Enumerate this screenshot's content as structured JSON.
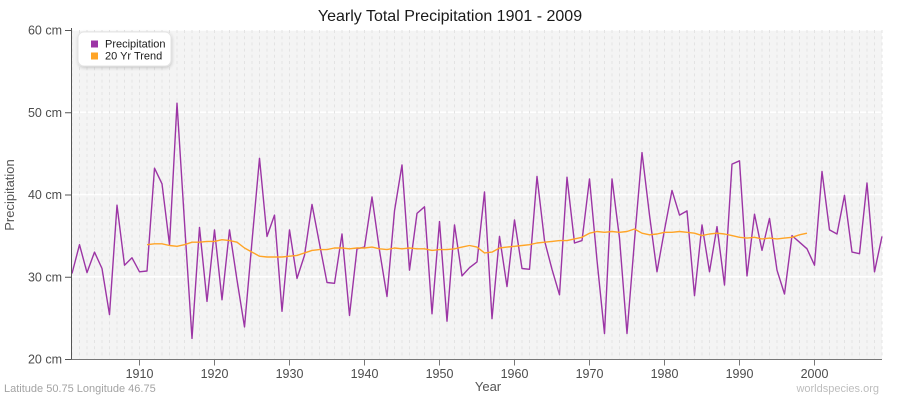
{
  "page": {
    "title": "Yearly Total Precipitation 1901 - 2009",
    "footer_left": "Latitude 50.75 Longitude 46.75",
    "footer_right": "worldspecies.org"
  },
  "chart_data": {
    "type": "line",
    "title": "Yearly Total Precipitation 1901 - 2009",
    "xlabel": "Year",
    "ylabel": "Precipitation",
    "ylim": [
      20,
      60
    ],
    "y_ticks": [
      20,
      30,
      40,
      50,
      60
    ],
    "y_tick_suffix": " cm",
    "x_ticks": [
      1910,
      1920,
      1930,
      1940,
      1950,
      1960,
      1970,
      1980,
      1990,
      2000
    ],
    "x_start": 1901,
    "x_end": 2009,
    "grid": "vertical dashed yearly, horizontal white at 10cm steps",
    "legend_position": "top-left",
    "plot_bg": "#f4f4f4",
    "series": [
      {
        "name": "Precipitation",
        "color": "#9C35A5",
        "x_start": 1901,
        "values": [
          30.4,
          33.9,
          30.5,
          33.0,
          31.0,
          25.4,
          38.7,
          31.4,
          32.3,
          30.6,
          30.7,
          43.2,
          41.3,
          33.9,
          51.1,
          36.6,
          22.5,
          36.0,
          27.0,
          35.7,
          27.2,
          35.7,
          29.6,
          23.9,
          34.3,
          44.4,
          34.9,
          37.5,
          25.8,
          35.7,
          29.8,
          32.6,
          38.8,
          34.0,
          29.3,
          29.2,
          35.2,
          25.3,
          33.4,
          33.6,
          39.7,
          33.2,
          27.6,
          38.0,
          43.6,
          30.8,
          37.7,
          38.5,
          25.5,
          36.7,
          24.6,
          36.3,
          30.1,
          31.1,
          31.8,
          40.3,
          24.9,
          34.9,
          28.8,
          36.9,
          31.0,
          30.9,
          42.2,
          34.4,
          30.9,
          27.8,
          42.1,
          34.1,
          34.4,
          41.9,
          32.0,
          23.1,
          41.9,
          34.7,
          23.1,
          34.4,
          45.1,
          37.5,
          30.6,
          35.7,
          40.5,
          37.5,
          38.0,
          27.7,
          36.3,
          30.6,
          36.1,
          29.0,
          43.7,
          44.1,
          30.1,
          37.6,
          33.2,
          37.1,
          30.8,
          27.9,
          35.0,
          34.2,
          33.4,
          31.4,
          42.8,
          35.7,
          35.2,
          39.9,
          33.0,
          32.8,
          41.4,
          30.6,
          34.9
        ]
      },
      {
        "name": "20 Yr Trend",
        "color": "#FFA426",
        "x_start": 1911,
        "values": [
          33.9,
          34.0,
          34.0,
          33.8,
          33.7,
          33.9,
          34.2,
          34.2,
          34.3,
          34.3,
          34.5,
          34.4,
          34.2,
          33.5,
          33.0,
          32.5,
          32.4,
          32.4,
          32.4,
          32.5,
          32.6,
          32.9,
          33.2,
          33.3,
          33.3,
          33.5,
          33.5,
          33.4,
          33.5,
          33.5,
          33.6,
          33.4,
          33.3,
          33.5,
          33.4,
          33.5,
          33.4,
          33.4,
          33.2,
          33.3,
          33.3,
          33.4,
          33.6,
          33.8,
          33.6,
          32.9,
          33.0,
          33.5,
          33.6,
          33.7,
          33.8,
          33.9,
          34.1,
          34.2,
          34.3,
          34.4,
          34.4,
          34.6,
          34.8,
          35.3,
          35.5,
          35.4,
          35.5,
          35.4,
          35.5,
          35.8,
          35.3,
          35.1,
          35.2,
          35.4,
          35.4,
          35.5,
          35.4,
          35.3,
          35.0,
          35.2,
          35.3,
          35.2,
          35.0,
          34.8,
          34.7,
          34.8,
          34.6,
          34.7,
          34.6,
          34.7,
          34.8,
          35.1,
          35.3
        ]
      }
    ]
  }
}
